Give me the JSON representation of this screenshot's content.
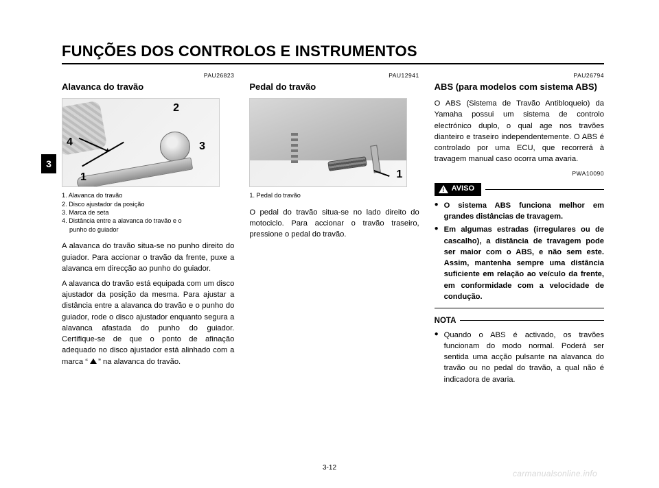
{
  "page": {
    "header": "FUNÇÕES DOS CONTROLOS E INSTRUMENTOS",
    "chapter_tab": "3",
    "page_number": "3-12",
    "watermark": "carmanualsonline.info"
  },
  "col1": {
    "code": "PAU26823",
    "title": "Alavanca do travão",
    "fig": {
      "n1": "1",
      "n2": "2",
      "n3": "3",
      "n4": "4"
    },
    "caption": {
      "l1": "1. Alavanca do travão",
      "l2": "2. Disco ajustador da posição",
      "l3": "3. Marca de seta",
      "l4a": "4. Distância entre a alavanca do travão e o",
      "l4b": "punho do guiador"
    },
    "p1": "A alavanca do travão situa-se no punho direito do guiador. Para accionar o travão da frente, puxe a alavanca em direcção ao punho do guiador.",
    "p2a": "A alavanca do travão está equipada com um disco ajustador da posição da mes­ma. Para ajustar a distância entre a ala­vanca do travão e o punho do guiador, rode o disco ajustador enquanto segura a alavanca afastada do punho do guiador. Certifique-se de que o ponto de afinação adequado no disco ajustador está alinha­do com a marca “ ",
    "p2b": " ” na alavanca do travão."
  },
  "col2": {
    "code": "PAU12941",
    "title": "Pedal do travão",
    "fig": {
      "n1": "1"
    },
    "caption": {
      "l1": "1. Pedal do travão"
    },
    "p1": "O pedal do travão situa-se no lado direito do motociclo. Para accionar o travão tra­seiro, pressione o pedal do travão."
  },
  "col3": {
    "code": "PAU26794",
    "title": "ABS (para modelos com sistema ABS)",
    "p1": "O ABS (Sistema de Travão Antibloqueio) da Yamaha possui um sistema de contro­lo electrónico duplo, o qual age nos travões dianteiro e traseiro independente­mente. O ABS é controlado por uma ECU, que recorrerá à travagem manual caso ocorra uma avaria.",
    "aviso_code": "PWA10090",
    "aviso_label": "AVISO",
    "aviso_items": [
      "O sistema ABS funciona melhor em grandes distâncias de trava­gem.",
      "Em algumas estradas (irregulares ou de cascalho), a distância de tra­vagem pode ser maior com o ABS, e não sem este. Assim, mantenha sempre uma distância suficiente em relação ao veículo da frente, em conformidade com a velocida­de de condução."
    ],
    "nota_label": "NOTA",
    "nota_items": [
      "Quando o ABS é activado, os travões funcionam do modo normal. Poderá ser sentida uma acção pul­sante na alavanca do travão ou no pedal do travão, a qual não é indica­dora de avaria."
    ]
  }
}
